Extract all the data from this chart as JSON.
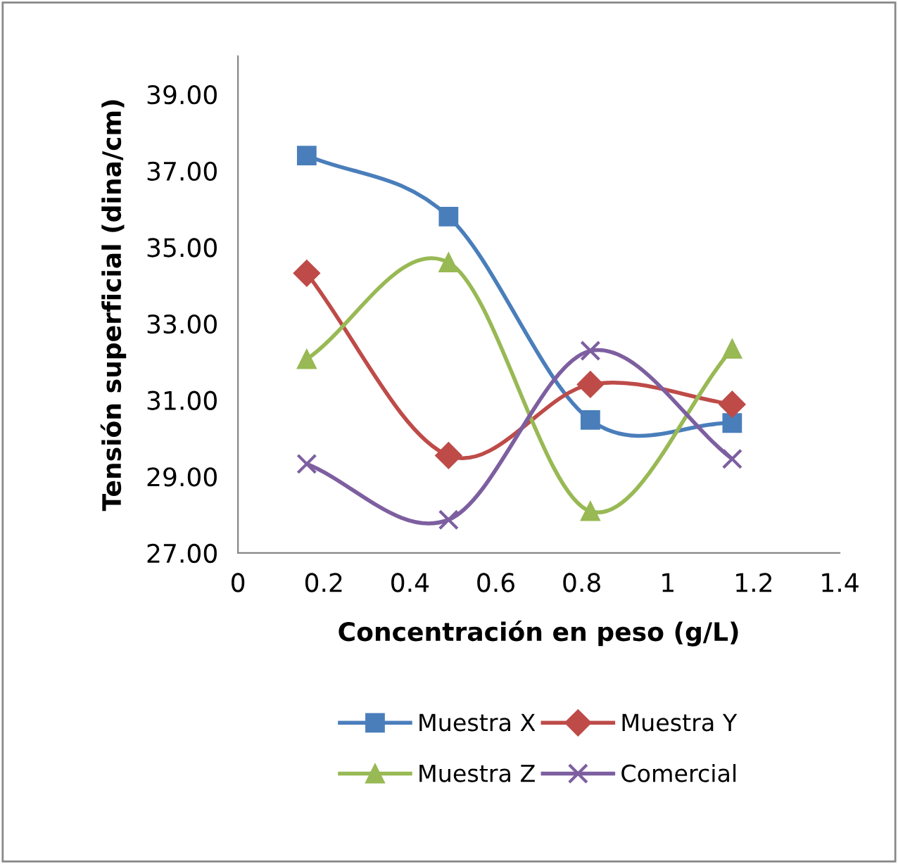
{
  "chart_data": {
    "type": "line",
    "xlabel": "Concentración en peso (g/L)",
    "ylabel": "Tensión superficial (dina/cm)",
    "xlim": [
      0,
      1.4
    ],
    "xticks": [
      0,
      0.2,
      0.4,
      0.6,
      0.8,
      1,
      1.2,
      1.4
    ],
    "ylim": [
      27,
      40
    ],
    "yticks": [
      {
        "value": 27,
        "label": "27.00"
      },
      {
        "value": 29,
        "label": "29.00"
      },
      {
        "value": 31,
        "label": "31.00"
      },
      {
        "value": 33,
        "label": "33.00"
      },
      {
        "value": 35,
        "label": "35.00"
      },
      {
        "value": 37,
        "label": "37.00"
      },
      {
        "value": 39,
        "label": "39.00"
      }
    ],
    "x": [
      0.16,
      0.49,
      0.82,
      1.15
    ],
    "grid": false,
    "legend": "bottom",
    "line_style": "solid",
    "series": [
      {
        "name": "Muestra X",
        "color": "#4a7ebb",
        "marker": "square",
        "values": [
          37.4,
          35.8,
          30.48,
          30.4
        ]
      },
      {
        "name": "Muestra Y",
        "color": "#be4b48",
        "marker": "diamond",
        "values": [
          34.32,
          29.55,
          31.41,
          30.89
        ]
      },
      {
        "name": "Muestra Z",
        "color": "#98b954",
        "marker": "triangle",
        "values": [
          32.07,
          34.6,
          28.09,
          32.34
        ]
      },
      {
        "name": "Comercial",
        "color": "#7d5fa0",
        "marker": "cross",
        "values": [
          29.33,
          27.87,
          32.29,
          29.46
        ]
      }
    ]
  }
}
